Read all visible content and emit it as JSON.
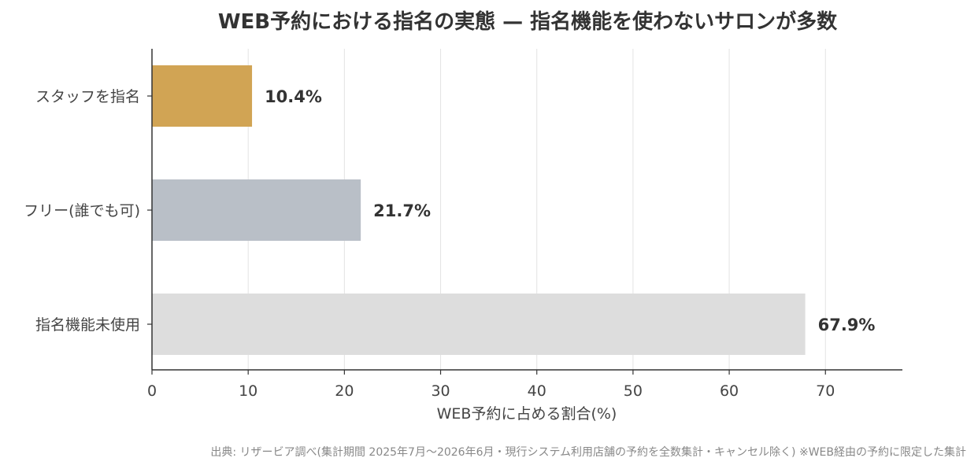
{
  "chart_data": {
    "type": "bar",
    "orientation": "horizontal",
    "title": "WEB予約における指名の実態 — 指名機能を使わないサロンが多数",
    "xlabel": "WEB予約に占める割合(%)",
    "ylabel": "",
    "categories": [
      "スタッフを指名",
      "フリー(誰でも可)",
      "指名機能未使用"
    ],
    "values": [
      10.4,
      21.7,
      67.9
    ],
    "value_labels": [
      "10.4%",
      "21.7%",
      "67.9%"
    ],
    "colors": [
      "#d1a454",
      "#b9bfc7",
      "#dddddd"
    ],
    "xlim": [
      0,
      78
    ],
    "xticks": [
      0,
      10,
      20,
      30,
      40,
      50,
      60,
      70
    ],
    "xtick_labels": [
      "0",
      "10",
      "20",
      "30",
      "40",
      "50",
      "60",
      "70"
    ],
    "grid": "vertical",
    "legend": "none"
  },
  "source": "出典: リザービア調べ(集計期間 2025年7月〜2026年6月・現行システム利用店舗の予約を全数集計・キャンセル除く) ※WEB経由の予約に限定した集計",
  "colors": {
    "text": "#333333",
    "axis": "#333333",
    "grid": "#e3e3e3",
    "source": "#888888"
  }
}
